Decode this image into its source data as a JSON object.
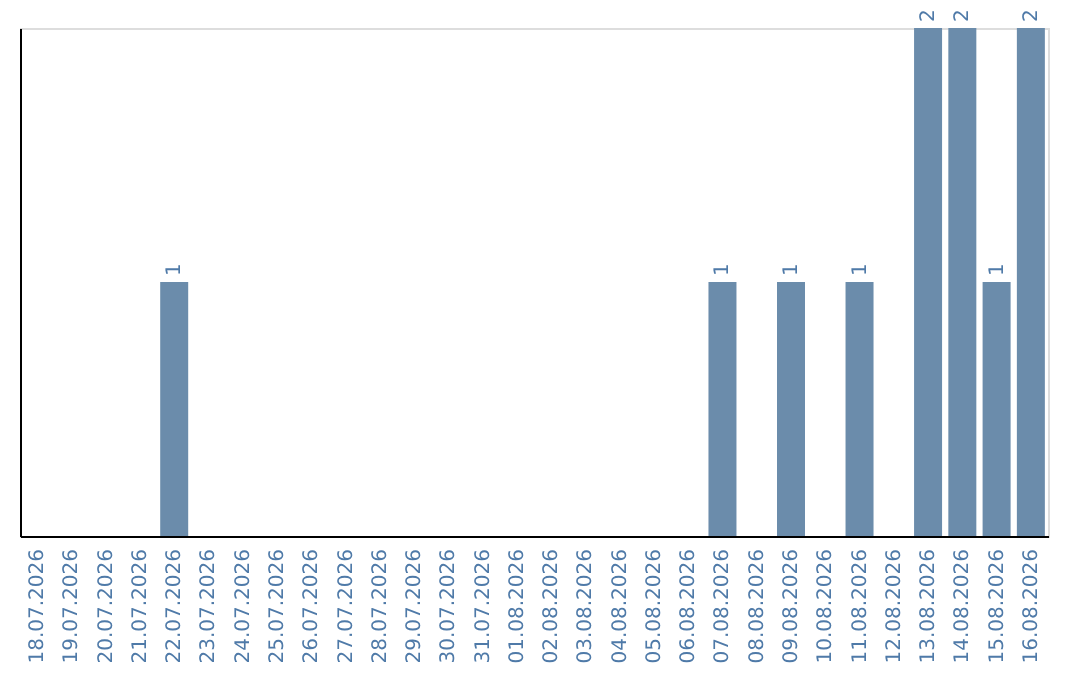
{
  "chart_data": {
    "type": "bar",
    "categories": [
      "18.07.2026",
      "19.07.2026",
      "20.07.2026",
      "21.07.2026",
      "22.07.2026",
      "23.07.2026",
      "24.07.2026",
      "25.07.2026",
      "26.07.2026",
      "27.07.2026",
      "28.07.2026",
      "29.07.2026",
      "30.07.2026",
      "31.07.2026",
      "01.08.2026",
      "02.08.2026",
      "03.08.2026",
      "04.08.2026",
      "05.08.2026",
      "06.08.2026",
      "07.08.2026",
      "08.08.2026",
      "09.08.2026",
      "10.08.2026",
      "11.08.2026",
      "12.08.2026",
      "13.08.2026",
      "14.08.2026",
      "15.08.2026",
      "16.08.2026"
    ],
    "values": [
      0,
      0,
      0,
      0,
      1,
      0,
      0,
      0,
      0,
      0,
      0,
      0,
      0,
      0,
      0,
      0,
      0,
      0,
      0,
      0,
      1,
      0,
      1,
      0,
      1,
      0,
      2,
      2,
      1,
      2
    ],
    "value_labels": [
      null,
      null,
      null,
      null,
      "1",
      null,
      null,
      null,
      null,
      null,
      null,
      null,
      null,
      null,
      null,
      null,
      null,
      null,
      null,
      null,
      "1",
      null,
      "1",
      null,
      "1",
      null,
      "2",
      "2",
      "1",
      "2"
    ],
    "color": "#6b8cab",
    "ylim": [
      0,
      2
    ],
    "tick_labels": "x"
  }
}
